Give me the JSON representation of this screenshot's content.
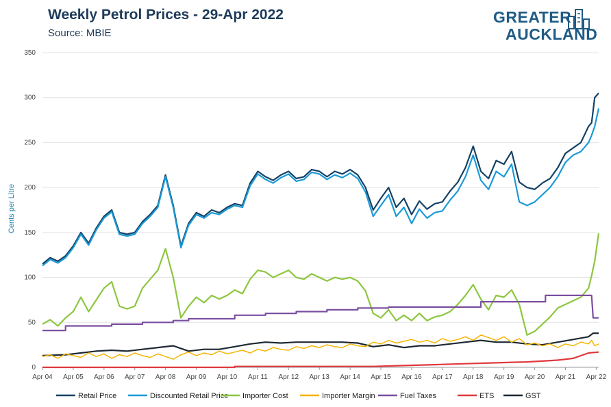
{
  "header": {
    "title": "Weekly Petrol Prices - 29-Apr 2022",
    "subtitle": "Source: MBIE"
  },
  "logo": {
    "line1": "GREATER",
    "line2": "AUCKLAND",
    "color": "#1f5b86"
  },
  "chart_data": {
    "type": "line",
    "ylabel": "Cents per Litre",
    "xlabel": "",
    "ylim": [
      0,
      350
    ],
    "yticks": [
      0,
      50,
      100,
      150,
      200,
      250,
      300,
      350
    ],
    "xlim": [
      2004.25,
      2022.33
    ],
    "xticks": [
      {
        "x": 2004.25,
        "label": "Apr 04"
      },
      {
        "x": 2005.25,
        "label": "Apr 05"
      },
      {
        "x": 2006.25,
        "label": "Apr 06"
      },
      {
        "x": 2007.25,
        "label": "Apr 07"
      },
      {
        "x": 2008.25,
        "label": "Apr 08"
      },
      {
        "x": 2009.25,
        "label": "Apr 09"
      },
      {
        "x": 2010.25,
        "label": "Apr 10"
      },
      {
        "x": 2011.25,
        "label": "Apr 11"
      },
      {
        "x": 2012.25,
        "label": "Apr 12"
      },
      {
        "x": 2013.25,
        "label": "Apr 13"
      },
      {
        "x": 2014.25,
        "label": "Apr 14"
      },
      {
        "x": 2015.25,
        "label": "Apr 15"
      },
      {
        "x": 2016.25,
        "label": "Apr 16"
      },
      {
        "x": 2017.25,
        "label": "Apr 17"
      },
      {
        "x": 2018.25,
        "label": "Apr 18"
      },
      {
        "x": 2019.25,
        "label": "Apr 19"
      },
      {
        "x": 2020.25,
        "label": "Apr 20"
      },
      {
        "x": 2021.25,
        "label": "Apr 21"
      },
      {
        "x": 2022.25,
        "label": "Apr 22"
      }
    ],
    "grid": "horizontal",
    "legend_position": "bottom",
    "series": [
      {
        "name": "Importer Cost",
        "color": "#8dc63f",
        "width": 2.2,
        "x": [
          2004.25,
          2004.5,
          2004.75,
          2005.0,
          2005.25,
          2005.5,
          2005.75,
          2006.0,
          2006.25,
          2006.5,
          2006.75,
          2007.0,
          2007.25,
          2007.5,
          2007.75,
          2008.0,
          2008.25,
          2008.5,
          2008.75,
          2009.0,
          2009.25,
          2009.5,
          2009.75,
          2010.0,
          2010.25,
          2010.5,
          2010.75,
          2011.0,
          2011.25,
          2011.5,
          2011.75,
          2012.0,
          2012.25,
          2012.5,
          2012.75,
          2013.0,
          2013.25,
          2013.5,
          2013.75,
          2014.0,
          2014.25,
          2014.5,
          2014.75,
          2015.0,
          2015.25,
          2015.5,
          2015.75,
          2016.0,
          2016.25,
          2016.5,
          2016.75,
          2017.0,
          2017.25,
          2017.5,
          2017.75,
          2018.0,
          2018.25,
          2018.5,
          2018.75,
          2019.0,
          2019.25,
          2019.5,
          2019.75,
          2020.0,
          2020.25,
          2020.5,
          2020.75,
          2021.0,
          2021.25,
          2021.5,
          2021.75,
          2022.0,
          2022.1,
          2022.2,
          2022.33
        ],
        "y": [
          48,
          53,
          46,
          55,
          62,
          78,
          62,
          75,
          88,
          95,
          68,
          65,
          68,
          88,
          98,
          108,
          132,
          100,
          55,
          68,
          78,
          72,
          80,
          76,
          80,
          86,
          82,
          98,
          108,
          106,
          100,
          104,
          108,
          100,
          98,
          104,
          100,
          96,
          100,
          98,
          100,
          96,
          85,
          60,
          55,
          64,
          52,
          58,
          52,
          60,
          52,
          56,
          58,
          62,
          70,
          80,
          92,
          76,
          64,
          80,
          78,
          86,
          70,
          36,
          40,
          48,
          56,
          66,
          70,
          74,
          78,
          88,
          102,
          118,
          149
        ]
      },
      {
        "name": "Retail Price",
        "color": "#154266",
        "width": 2.2,
        "x": [
          2004.25,
          2004.5,
          2004.75,
          2005.0,
          2005.25,
          2005.5,
          2005.75,
          2006.0,
          2006.25,
          2006.5,
          2006.75,
          2007.0,
          2007.25,
          2007.5,
          2007.75,
          2008.0,
          2008.25,
          2008.5,
          2008.75,
          2009.0,
          2009.25,
          2009.5,
          2009.75,
          2010.0,
          2010.25,
          2010.5,
          2010.75,
          2011.0,
          2011.25,
          2011.5,
          2011.75,
          2012.0,
          2012.25,
          2012.5,
          2012.75,
          2013.0,
          2013.25,
          2013.5,
          2013.75,
          2014.0,
          2014.25,
          2014.5,
          2014.75,
          2015.0,
          2015.25,
          2015.5,
          2015.75,
          2016.0,
          2016.25,
          2016.5,
          2016.75,
          2017.0,
          2017.25,
          2017.5,
          2017.75,
          2018.0,
          2018.25,
          2018.5,
          2018.75,
          2019.0,
          2019.25,
          2019.5,
          2019.75,
          2020.0,
          2020.25,
          2020.5,
          2020.75,
          2021.0,
          2021.25,
          2021.5,
          2021.75,
          2022.0,
          2022.1,
          2022.2,
          2022.33
        ],
        "y": [
          115,
          122,
          118,
          124,
          135,
          150,
          138,
          155,
          168,
          175,
          150,
          148,
          150,
          162,
          170,
          180,
          214,
          180,
          135,
          160,
          172,
          168,
          175,
          172,
          178,
          182,
          180,
          205,
          218,
          212,
          208,
          214,
          218,
          210,
          212,
          220,
          218,
          212,
          218,
          215,
          220,
          214,
          200,
          175,
          188,
          200,
          178,
          188,
          170,
          185,
          176,
          182,
          184,
          196,
          206,
          222,
          246,
          218,
          210,
          230,
          226,
          240,
          206,
          200,
          198,
          205,
          210,
          222,
          238,
          244,
          250,
          268,
          272,
          300,
          305
        ]
      },
      {
        "name": "Discounted Retail Price",
        "color": "#1b9ad6",
        "width": 2.2,
        "x": [
          2004.25,
          2004.5,
          2004.75,
          2005.0,
          2005.25,
          2005.5,
          2005.75,
          2006.0,
          2006.25,
          2006.5,
          2006.75,
          2007.0,
          2007.25,
          2007.5,
          2007.75,
          2008.0,
          2008.25,
          2008.5,
          2008.75,
          2009.0,
          2009.25,
          2009.5,
          2009.75,
          2010.0,
          2010.25,
          2010.5,
          2010.75,
          2011.0,
          2011.25,
          2011.5,
          2011.75,
          2012.0,
          2012.25,
          2012.5,
          2012.75,
          2013.0,
          2013.25,
          2013.5,
          2013.75,
          2014.0,
          2014.25,
          2014.5,
          2014.75,
          2015.0,
          2015.25,
          2015.5,
          2015.75,
          2016.0,
          2016.25,
          2016.5,
          2016.75,
          2017.0,
          2017.25,
          2017.5,
          2017.75,
          2018.0,
          2018.25,
          2018.5,
          2018.75,
          2019.0,
          2019.25,
          2019.5,
          2019.75,
          2020.0,
          2020.25,
          2020.5,
          2020.75,
          2021.0,
          2021.25,
          2021.5,
          2021.75,
          2022.0,
          2022.1,
          2022.2,
          2022.33
        ],
        "y": [
          113,
          120,
          116,
          122,
          133,
          148,
          136,
          153,
          166,
          173,
          148,
          146,
          148,
          160,
          168,
          178,
          212,
          178,
          133,
          158,
          170,
          166,
          172,
          170,
          176,
          180,
          178,
          202,
          215,
          209,
          205,
          211,
          215,
          207,
          209,
          217,
          215,
          209,
          214,
          211,
          216,
          210,
          195,
          168,
          180,
          192,
          168,
          178,
          160,
          176,
          166,
          172,
          174,
          186,
          196,
          212,
          236,
          208,
          198,
          218,
          212,
          226,
          184,
          180,
          184,
          192,
          200,
          212,
          228,
          236,
          240,
          250,
          258,
          268,
          288
        ]
      },
      {
        "name": "Fuel Taxes",
        "color": "#7a4fa0",
        "width": 2.2,
        "x": [
          2004.25,
          2005.0,
          2005.0,
          2006.5,
          2006.5,
          2007.5,
          2007.5,
          2008.5,
          2008.5,
          2009.0,
          2009.0,
          2010.5,
          2010.5,
          2011.5,
          2011.5,
          2012.5,
          2012.5,
          2013.5,
          2013.5,
          2014.5,
          2014.5,
          2015.5,
          2015.5,
          2018.5,
          2018.5,
          2020.6,
          2020.6,
          2022.1,
          2022.15,
          2022.33
        ],
        "y": [
          41,
          41,
          46,
          46,
          48,
          48,
          50,
          50,
          52,
          52,
          54,
          54,
          58,
          58,
          60,
          60,
          62,
          62,
          64,
          64,
          66,
          66,
          67,
          67,
          73,
          73,
          80,
          80,
          55,
          55
        ]
      },
      {
        "name": "GST",
        "color": "#1c2833",
        "width": 2.2,
        "x": [
          2004.25,
          2005.0,
          2005.5,
          2006.0,
          2006.5,
          2007.0,
          2007.5,
          2008.0,
          2008.5,
          2009.0,
          2009.5,
          2010.0,
          2010.5,
          2011.0,
          2011.5,
          2012.0,
          2012.5,
          2013.0,
          2013.5,
          2014.0,
          2014.5,
          2015.0,
          2015.5,
          2016.0,
          2016.5,
          2017.0,
          2017.5,
          2018.0,
          2018.5,
          2019.0,
          2019.5,
          2020.0,
          2020.5,
          2021.0,
          2021.5,
          2022.0,
          2022.15,
          2022.33
        ],
        "y": [
          13,
          14,
          16,
          18,
          19,
          18,
          20,
          22,
          24,
          18,
          20,
          20,
          23,
          26,
          28,
          27,
          28,
          28,
          28,
          28,
          27,
          23,
          25,
          22,
          24,
          24,
          26,
          28,
          30,
          28,
          28,
          26,
          25,
          28,
          31,
          34,
          38,
          38
        ]
      },
      {
        "name": "Importer Margin",
        "color": "#f5b400",
        "width": 1.5,
        "x": [
          2004.25,
          2004.5,
          2004.75,
          2005.0,
          2005.25,
          2005.5,
          2005.75,
          2006.0,
          2006.25,
          2006.5,
          2006.75,
          2007.0,
          2007.25,
          2007.5,
          2007.75,
          2008.0,
          2008.25,
          2008.5,
          2008.75,
          2009.0,
          2009.25,
          2009.5,
          2009.75,
          2010.0,
          2010.25,
          2010.5,
          2010.75,
          2011.0,
          2011.25,
          2011.5,
          2011.75,
          2012.0,
          2012.25,
          2012.5,
          2012.75,
          2013.0,
          2013.25,
          2013.5,
          2013.75,
          2014.0,
          2014.25,
          2014.5,
          2014.75,
          2015.0,
          2015.25,
          2015.5,
          2015.75,
          2016.0,
          2016.25,
          2016.5,
          2016.75,
          2017.0,
          2017.25,
          2017.5,
          2017.75,
          2018.0,
          2018.25,
          2018.5,
          2018.75,
          2019.0,
          2019.25,
          2019.5,
          2019.75,
          2020.0,
          2020.25,
          2020.5,
          2020.75,
          2021.0,
          2021.25,
          2021.5,
          2021.75,
          2022.0,
          2022.1,
          2022.2,
          2022.33
        ],
        "y": [
          12,
          14,
          10,
          15,
          13,
          11,
          16,
          12,
          15,
          10,
          14,
          12,
          16,
          13,
          11,
          15,
          12,
          9,
          14,
          17,
          13,
          16,
          14,
          18,
          15,
          17,
          19,
          16,
          20,
          18,
          22,
          20,
          19,
          23,
          21,
          24,
          22,
          25,
          23,
          22,
          26,
          24,
          23,
          28,
          26,
          30,
          27,
          29,
          31,
          28,
          30,
          27,
          32,
          29,
          31,
          34,
          30,
          36,
          33,
          30,
          34,
          28,
          32,
          25,
          27,
          24,
          26,
          22,
          26,
          24,
          28,
          26,
          30,
          24,
          26
        ]
      },
      {
        "name": "ETS",
        "color": "#e0393e",
        "width": 2.2,
        "x": [
          2004.25,
          2010.5,
          2010.5,
          2012.0,
          2013.0,
          2015.0,
          2016.0,
          2017.0,
          2018.0,
          2019.0,
          2020.0,
          2021.0,
          2021.5,
          2022.0,
          2022.33
        ],
        "y": [
          0,
          0,
          1,
          1,
          1,
          1,
          2,
          3,
          4,
          5,
          6,
          8,
          10,
          16,
          17
        ]
      }
    ],
    "legend_order": [
      "Retail Price",
      "Discounted Retail Price",
      "Importer Cost",
      "Importer Margin",
      "Fuel Taxes",
      "ETS",
      "GST"
    ]
  }
}
